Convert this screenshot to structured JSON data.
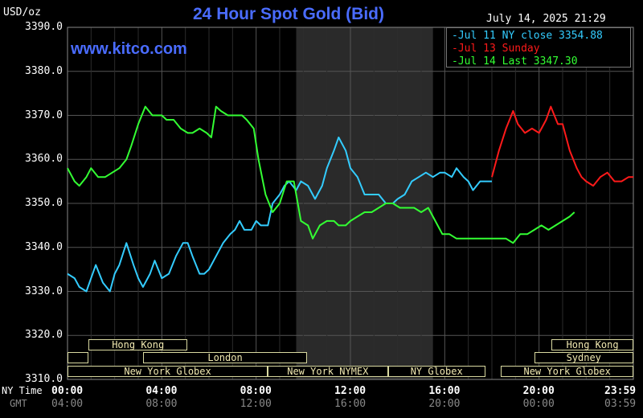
{
  "header": {
    "unit": "USD/oz",
    "title": "24 Hour Spot Gold (Bid)",
    "timestamp": "July 14, 2025 21:29",
    "website": "www.kitco.com"
  },
  "legend": [
    {
      "label": "Jul 11 NY close 3354.88",
      "color": "#33ccff"
    },
    {
      "label": "Jul 13 Sunday",
      "color": "#ff1a1a"
    },
    {
      "label": "Jul 14 Last 3347.30",
      "color": "#33ff33"
    }
  ],
  "axis": {
    "ny_time_label": "NY Time",
    "gmt_label": "GMT",
    "ny_ticks": [
      "00:00",
      "04:00",
      "08:00",
      "12:00",
      "16:00",
      "20:00",
      "23:59"
    ],
    "gmt_ticks": [
      "04:00",
      "08:00",
      "12:00",
      "16:00",
      "20:00",
      "00:00",
      "03:59"
    ],
    "y_ticks": [
      "3390.0",
      "3380.0",
      "3370.0",
      "3360.0",
      "3350.0",
      "3340.0",
      "3330.0",
      "3320.0",
      "3310.0"
    ]
  },
  "sessions": [
    {
      "label": "Hong Kong",
      "row": 0,
      "start": 2.4,
      "end": 13.8
    },
    {
      "label": "",
      "row": 1,
      "start": 0,
      "end": 2.4
    },
    {
      "label": "London",
      "row": 1,
      "start": 8.7,
      "end": 27.5
    },
    {
      "label": "New York Globex",
      "row": 2,
      "start": 0,
      "end": 23.0
    },
    {
      "label": "New York NYMEX",
      "row": 2,
      "start": 23.0,
      "end": 36.8
    },
    {
      "label": "NY Globex",
      "row": 2,
      "start": 36.8,
      "end": 48.0
    },
    {
      "label": "Hong Kong",
      "row": 0,
      "start": 55.6,
      "end": 65.0
    },
    {
      "label": "Sydney",
      "row": 1,
      "start": 53.6,
      "end": 65.0
    },
    {
      "label": "New York Globex",
      "row": 2,
      "start": 49.8,
      "end": 65.0
    }
  ],
  "chart_data": {
    "type": "line",
    "title": "24 Hour Spot Gold (Bid)",
    "ylabel": "USD/oz",
    "x_unit": "NY time, hours",
    "ylim": [
      3310,
      3390
    ],
    "xlim": [
      0,
      24
    ],
    "grid": true,
    "legend_position": "top-right",
    "shaded_region": [
      9.7,
      15.5
    ],
    "series": [
      {
        "name": "Jul 11 NY close 3354.88",
        "color": "#33ccff",
        "x": [
          0.0,
          0.3,
          0.5,
          0.8,
          1.0,
          1.2,
          1.5,
          1.8,
          2.0,
          2.2,
          2.5,
          2.8,
          3.0,
          3.2,
          3.5,
          3.7,
          4.0,
          4.3,
          4.6,
          4.9,
          5.1,
          5.3,
          5.6,
          5.8,
          6.0,
          6.3,
          6.6,
          6.9,
          7.1,
          7.3,
          7.5,
          7.8,
          8.0,
          8.2,
          8.5,
          8.7,
          9.0,
          9.2,
          9.4,
          9.7,
          9.9,
          10.2,
          10.5,
          10.8,
          11.0,
          11.3,
          11.5,
          11.8,
          12.0,
          12.3,
          12.6,
          12.9,
          13.2,
          13.5,
          13.8,
          14.0,
          14.3,
          14.6,
          14.9,
          15.2,
          15.5,
          15.8,
          16.0,
          16.3,
          16.5,
          16.8,
          17.0,
          17.2,
          17.5,
          17.8,
          18.0
        ],
        "y": [
          3334,
          3333,
          3331,
          3330,
          3333,
          3336,
          3332,
          3330,
          3334,
          3336,
          3341,
          3336,
          3333,
          3331,
          3334,
          3337,
          3333,
          3334,
          3338,
          3341,
          3341,
          3338,
          3334,
          3334,
          3335,
          3338,
          3341,
          3343,
          3344,
          3346,
          3344,
          3344,
          3346,
          3345,
          3345,
          3350,
          3352,
          3354,
          3355,
          3353,
          3355,
          3354,
          3351,
          3354,
          3358,
          3362,
          3365,
          3362,
          3358,
          3356,
          3352,
          3352,
          3352,
          3350,
          3350,
          3351,
          3352,
          3355,
          3356,
          3357,
          3356,
          3357,
          3357,
          3356,
          3358,
          3356,
          3355,
          3353,
          3355,
          3355,
          3355
        ]
      },
      {
        "name": "Jul 13 Sunday",
        "color": "#ff1a1a",
        "x": [
          18.0,
          18.3,
          18.6,
          18.9,
          19.1,
          19.4,
          19.7,
          20.0,
          20.3,
          20.5,
          20.8,
          21.0,
          21.3,
          21.6,
          21.8,
          22.0,
          22.3,
          22.6,
          22.9,
          23.2,
          23.5,
          23.8,
          24.0
        ],
        "y": [
          3356,
          3362,
          3367,
          3371,
          3368,
          3366,
          3367,
          3366,
          3369,
          3372,
          3368,
          3368,
          3362,
          3358,
          3356,
          3355,
          3354,
          3356,
          3357,
          3355,
          3355,
          3356,
          3356
        ]
      },
      {
        "name": "Jul 14 Last 3347.30",
        "color": "#33ff33",
        "x": [
          0.0,
          0.3,
          0.5,
          0.8,
          1.0,
          1.3,
          1.6,
          1.9,
          2.2,
          2.5,
          2.7,
          3.0,
          3.3,
          3.6,
          3.8,
          4.0,
          4.2,
          4.5,
          4.8,
          5.1,
          5.3,
          5.6,
          5.9,
          6.1,
          6.3,
          6.5,
          6.8,
          7.1,
          7.4,
          7.6,
          7.9,
          8.1,
          8.4,
          8.7,
          9.0,
          9.3,
          9.6,
          9.9,
          10.2,
          10.4,
          10.7,
          11.0,
          11.3,
          11.5,
          11.8,
          12.0,
          12.3,
          12.6,
          12.9,
          13.2,
          13.5,
          13.8,
          14.1,
          14.4,
          14.7,
          15.0,
          15.3,
          15.6,
          15.9,
          16.2,
          16.5,
          16.8,
          17.1,
          17.4,
          17.7,
          18.0,
          18.3,
          18.6,
          18.9,
          19.2,
          19.5,
          19.8,
          20.1,
          20.4,
          20.7,
          21.0,
          21.3,
          21.5
        ],
        "y": [
          3358,
          3355,
          3354,
          3356,
          3358,
          3356,
          3356,
          3357,
          3358,
          3360,
          3363,
          3368,
          3372,
          3370,
          3370,
          3370,
          3369,
          3369,
          3367,
          3366,
          3366,
          3367,
          3366,
          3365,
          3372,
          3371,
          3370,
          3370,
          3370,
          3369,
          3367,
          3360,
          3352,
          3348,
          3350,
          3355,
          3355,
          3346,
          3345,
          3342,
          3345,
          3346,
          3346,
          3345,
          3345,
          3346,
          3347,
          3348,
          3348,
          3349,
          3350,
          3350,
          3349,
          3349,
          3349,
          3348,
          3349,
          3346,
          3343,
          3343,
          3342,
          3342,
          3342,
          3342,
          3342,
          3342,
          3342,
          3342,
          3341,
          3343,
          3343,
          3344,
          3345,
          3344,
          3345,
          3346,
          3347,
          3348
        ]
      }
    ]
  }
}
